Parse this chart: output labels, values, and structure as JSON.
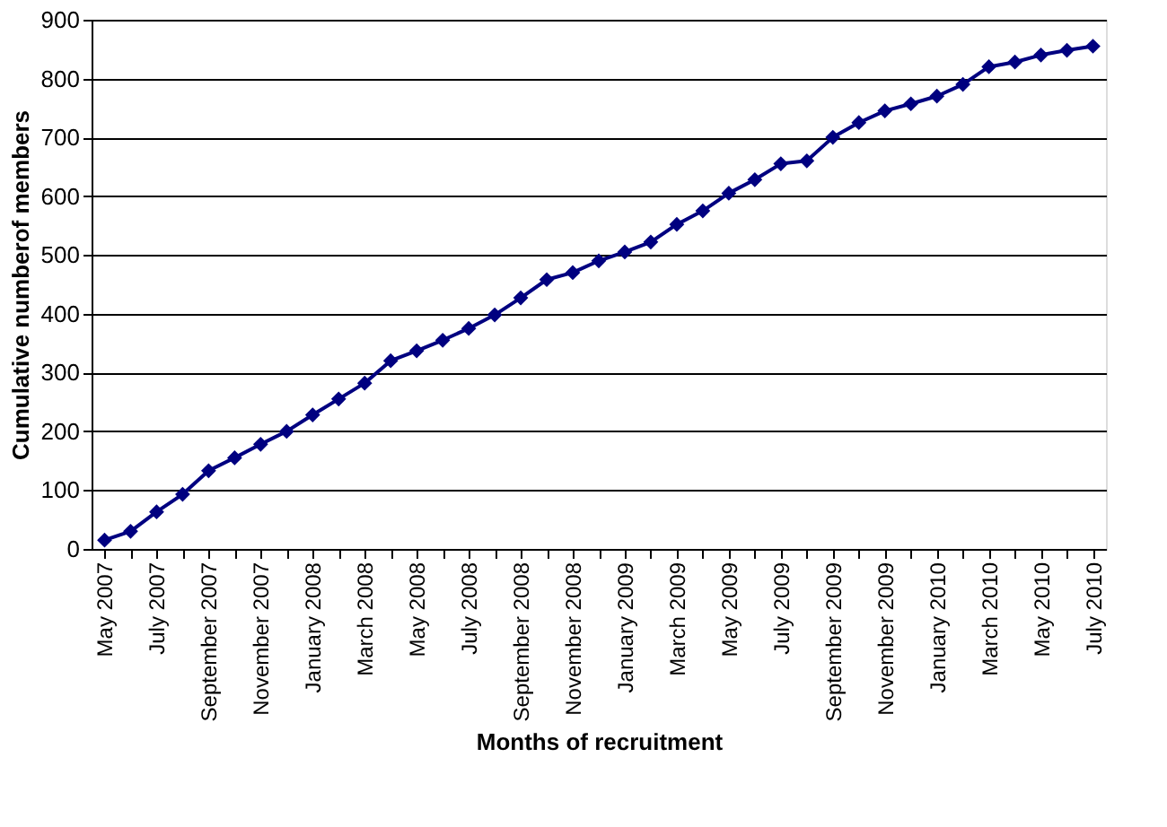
{
  "chart_data": {
    "type": "line",
    "xlabel": "Months of recruitment",
    "ylabel": "Cumulative numberof members",
    "categories": [
      "May 2007",
      null,
      "July 2007",
      null,
      "September 2007",
      null,
      "November 2007",
      null,
      "January 2008",
      null,
      "March 2008",
      null,
      "May 2008",
      null,
      "July 2008",
      null,
      "September 2008",
      null,
      "November 2008",
      null,
      "January 2009",
      null,
      "March 2009",
      null,
      "May 2009",
      null,
      "July 2009",
      null,
      "September 2009",
      null,
      "November 2009",
      null,
      "January 2010",
      null,
      "March 2010",
      null,
      "May 2010",
      null,
      "July 2010"
    ],
    "series": [
      {
        "color": "#000080",
        "values": [
          15,
          30,
          63,
          93,
          133,
          155,
          178,
          200,
          228,
          255,
          282,
          320,
          337,
          355,
          375,
          398,
          427,
          458,
          470,
          490,
          505,
          522,
          552,
          575,
          605,
          628,
          655,
          660,
          700,
          725,
          745,
          757,
          770,
          790,
          820,
          828,
          840,
          848,
          855
        ]
      }
    ],
    "ylim": [
      0,
      900
    ],
    "yticks": [
      0,
      100,
      200,
      300,
      400,
      500,
      600,
      700,
      800,
      900
    ],
    "grid": "y",
    "marker": "diamond",
    "line_style": "solid"
  }
}
